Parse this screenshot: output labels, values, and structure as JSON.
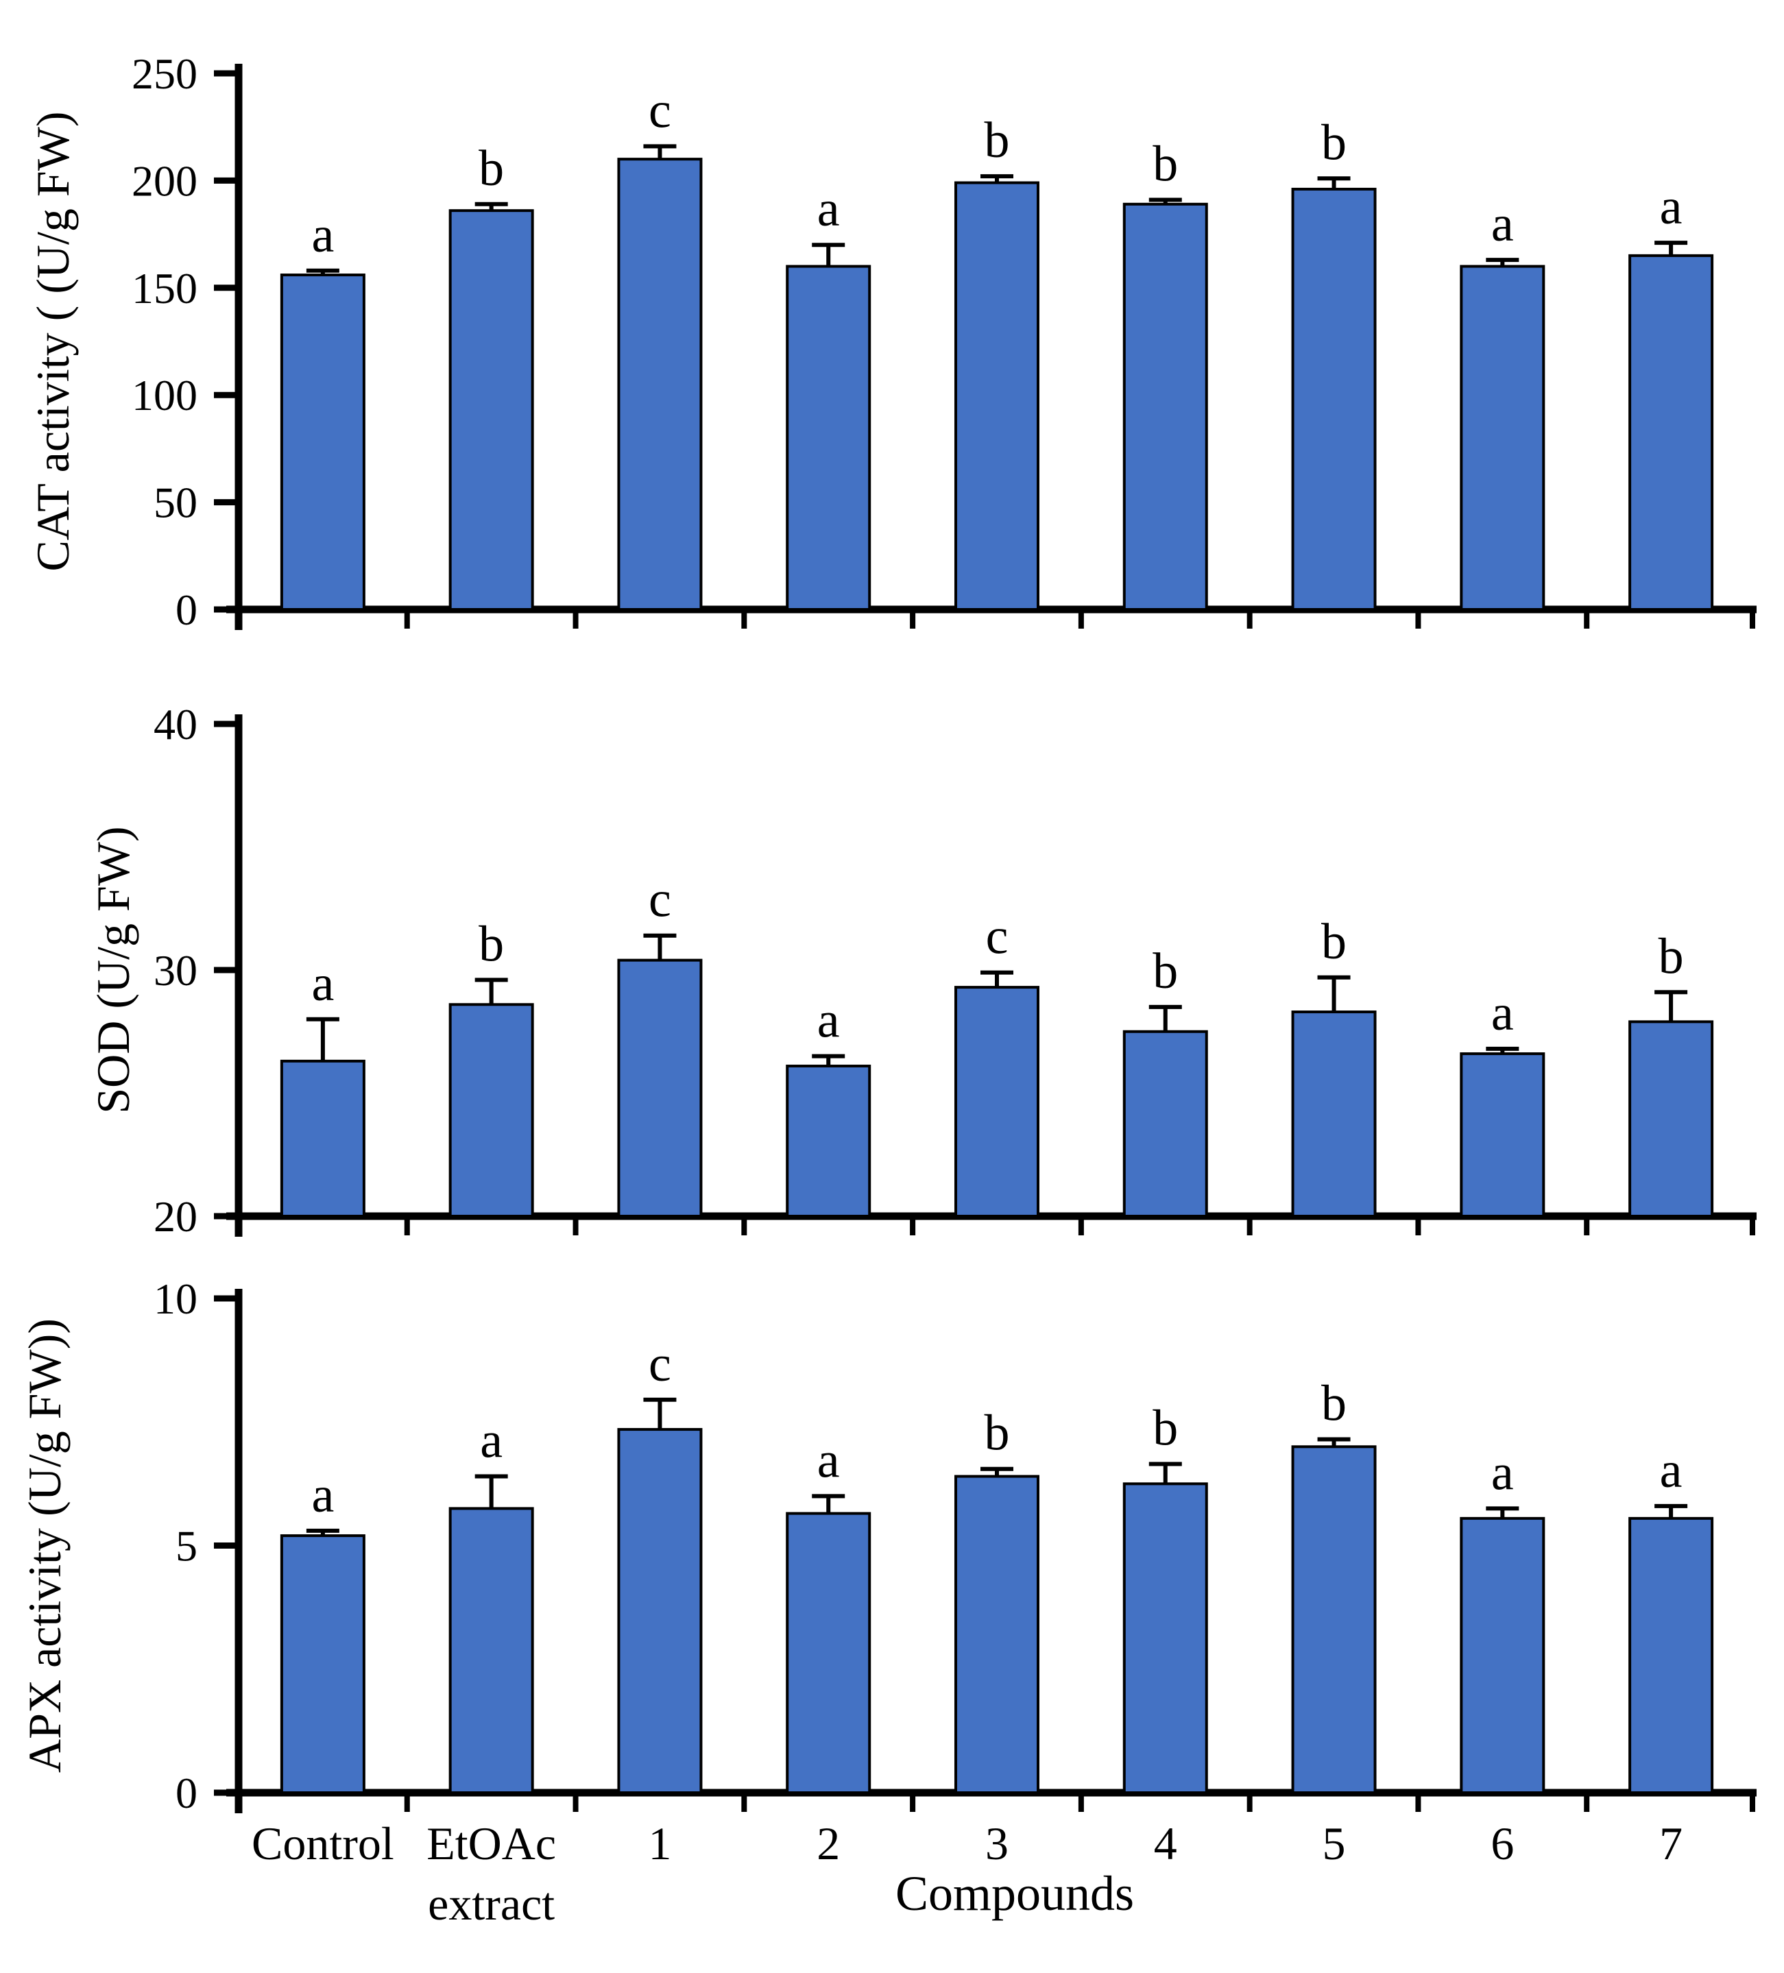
{
  "figure": {
    "background_color": "#ffffff",
    "bar_fill_color": "#4472C4",
    "bar_stroke_color": "#000000",
    "axis_color": "#000000",
    "text_color": "#000000"
  },
  "chart_data": [
    {
      "type": "bar",
      "title": "",
      "ylabel": "CAT activity ( (U/g FW)",
      "xlabel": "",
      "ylim": [
        0,
        250
      ],
      "yticks": [
        0,
        50,
        100,
        150,
        200,
        250
      ],
      "grid": false,
      "legend": "none",
      "categories": [
        "Control",
        "EtOAc\nextract",
        "1",
        "2",
        "3",
        "4",
        "5",
        "6",
        "7"
      ],
      "values": [
        156,
        186,
        210,
        160,
        199,
        189,
        196,
        160,
        165
      ],
      "errors": [
        2,
        3,
        6,
        10,
        3,
        2,
        5,
        3,
        6
      ],
      "letters": [
        "a",
        "b",
        "c",
        "a",
        "b",
        "b",
        "b",
        "a",
        "a"
      ]
    },
    {
      "type": "bar",
      "title": "",
      "ylabel": "SOD (U/g FW)",
      "xlabel": "",
      "ylim": [
        20,
        40
      ],
      "yticks": [
        20,
        30,
        40
      ],
      "grid": false,
      "legend": "none",
      "categories": [
        "Control",
        "EtOAc\nextract",
        "1",
        "2",
        "3",
        "4",
        "5",
        "6",
        "7"
      ],
      "values": [
        26.3,
        28.6,
        30.4,
        26.1,
        29.3,
        27.5,
        28.3,
        26.6,
        27.9
      ],
      "errors": [
        1.7,
        1.0,
        1.0,
        0.4,
        0.6,
        1.0,
        1.4,
        0.2,
        1.2
      ],
      "letters": [
        "a",
        "b",
        "c",
        "a",
        "c",
        "b",
        "b",
        "a",
        "b"
      ]
    },
    {
      "type": "bar",
      "title": "",
      "ylabel": "APX activity  (U/g FW))",
      "xlabel": "Compounds",
      "ylim": [
        0,
        10
      ],
      "yticks": [
        0,
        5,
        10
      ],
      "grid": false,
      "legend": "none",
      "categories": [
        "Control",
        "EtOAc\nextract",
        "1",
        "2",
        "3",
        "4",
        "5",
        "6",
        "7"
      ],
      "values": [
        5.2,
        5.75,
        7.35,
        5.65,
        6.4,
        6.25,
        7.0,
        5.55,
        5.55
      ],
      "errors": [
        0.1,
        0.65,
        0.6,
        0.35,
        0.15,
        0.4,
        0.15,
        0.2,
        0.25
      ],
      "letters": [
        "a",
        "a",
        "c",
        "a",
        "b",
        "b",
        "b",
        "a",
        "a"
      ]
    }
  ]
}
